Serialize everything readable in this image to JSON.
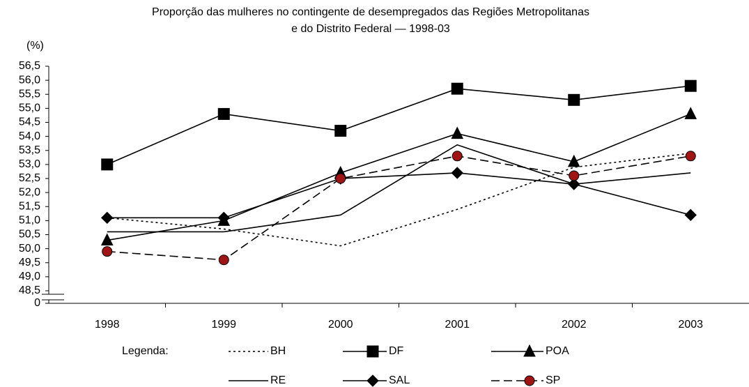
{
  "chart_data": {
    "type": "line",
    "title": [
      "Proporção das mulheres no contingente de desempregados das Regiões Metropolitanas",
      "e do Distrito Federal — 1998-03"
    ],
    "y_label": "(%)",
    "legend_title": "Legenda:",
    "categories": [
      "1998",
      "1999",
      "2000",
      "2001",
      "2002",
      "2003"
    ],
    "ylim": [
      0,
      56.5
    ],
    "axis_break": true,
    "yticks": [
      0,
      {
        "value": 48.5,
        "label": "48,5"
      },
      {
        "value": 49,
        "label": "49,0"
      },
      {
        "value": 49.5,
        "label": "49,5"
      },
      {
        "value": 50,
        "label": "50,0"
      },
      {
        "value": 50.5,
        "label": "50,5"
      },
      {
        "value": 51,
        "label": "51,0"
      },
      {
        "value": 51.5,
        "label": "51,5"
      },
      {
        "value": 52,
        "label": "52,0"
      },
      {
        "value": 52.5,
        "label": "52,5"
      },
      {
        "value": 53,
        "label": "53,0"
      },
      {
        "value": 53.5,
        "label": "53,5"
      },
      {
        "value": 54,
        "label": "54,0"
      },
      {
        "value": 54.5,
        "label": "54,5"
      },
      {
        "value": 55,
        "label": "55,0"
      },
      {
        "value": 55.5,
        "label": "55,5"
      },
      {
        "value": 56,
        "label": "56,0"
      },
      {
        "value": 56.5,
        "label": "56,5"
      }
    ],
    "grid": false,
    "series": [
      {
        "name": "BH",
        "color": "#000000",
        "style": "dotted",
        "marker": "none",
        "values": [
          51.1,
          50.7,
          50.1,
          51.4,
          52.9,
          53.4
        ]
      },
      {
        "name": "DF",
        "color": "#000000",
        "style": "solid",
        "marker": "square",
        "values": [
          53.0,
          54.8,
          54.2,
          55.7,
          55.3,
          55.8
        ]
      },
      {
        "name": "POA",
        "color": "#000000",
        "style": "solid",
        "marker": "triangle",
        "values": [
          50.3,
          51.0,
          52.7,
          54.1,
          53.1,
          54.8
        ]
      },
      {
        "name": "RE",
        "color": "#000000",
        "style": "solid",
        "marker": "none",
        "values": [
          50.6,
          50.6,
          51.2,
          53.7,
          52.3,
          52.7
        ]
      },
      {
        "name": "SAL",
        "color": "#000000",
        "style": "solid",
        "marker": "diamond",
        "values": [
          51.1,
          51.1,
          52.5,
          52.7,
          52.3,
          51.2
        ]
      },
      {
        "name": "SP",
        "color": "#000000",
        "style": "dashed",
        "marker": "circle",
        "marker_color": "#a01414",
        "values": [
          49.9,
          49.6,
          52.5,
          53.3,
          52.6,
          53.3
        ]
      }
    ]
  }
}
